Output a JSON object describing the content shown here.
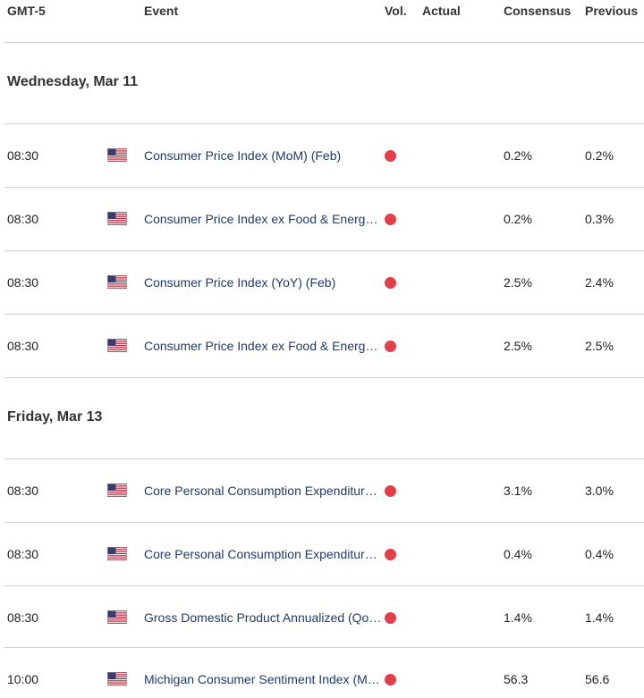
{
  "header": {
    "timezone": "GMT-5",
    "event": "Event",
    "vol": "Vol.",
    "actual": "Actual",
    "consensus": "Consensus",
    "previous": "Previous"
  },
  "colors": {
    "volatility_high": "#e0404a",
    "event_text": "#1f3a68",
    "divider": "#cfcfcf"
  },
  "days": [
    {
      "label": "Wednesday, Mar 11",
      "events": [
        {
          "time": "08:30",
          "country_icon": "us-flag-icon",
          "event": "Consumer Price Index (MoM) (Feb)",
          "actual": "",
          "consensus": "0.2%",
          "previous": "0.2%"
        },
        {
          "time": "08:30",
          "country_icon": "us-flag-icon",
          "event": "Consumer Price Index ex Food & Energy (MoM) (Feb)",
          "actual": "",
          "consensus": "0.2%",
          "previous": "0.3%"
        },
        {
          "time": "08:30",
          "country_icon": "us-flag-icon",
          "event": "Consumer Price Index (YoY) (Feb)",
          "actual": "",
          "consensus": "2.5%",
          "previous": "2.4%"
        },
        {
          "time": "08:30",
          "country_icon": "us-flag-icon",
          "event": "Consumer Price Index ex Food & Energy (YoY) (Feb)",
          "actual": "",
          "consensus": "2.5%",
          "previous": "2.5%"
        }
      ]
    },
    {
      "label": "Friday, Mar 13",
      "events": [
        {
          "time": "08:30",
          "country_icon": "us-flag-icon",
          "event": "Core Personal Consumption Expenditures - Price Index (YoY)",
          "actual": "",
          "consensus": "3.1%",
          "previous": "3.0%"
        },
        {
          "time": "08:30",
          "country_icon": "us-flag-icon",
          "event": "Core Personal Consumption Expenditures - Price Index (MoM)",
          "actual": "",
          "consensus": "0.4%",
          "previous": "0.4%"
        },
        {
          "time": "08:30",
          "country_icon": "us-flag-icon",
          "event": "Gross Domestic Product Annualized (QoQ)",
          "actual": "",
          "consensus": "1.4%",
          "previous": "1.4%"
        },
        {
          "time": "10:00",
          "country_icon": "us-flag-icon",
          "event": "Michigan Consumer Sentiment Index (Mar)",
          "actual": "",
          "consensus": "56.3",
          "previous": "56.6"
        }
      ]
    }
  ]
}
